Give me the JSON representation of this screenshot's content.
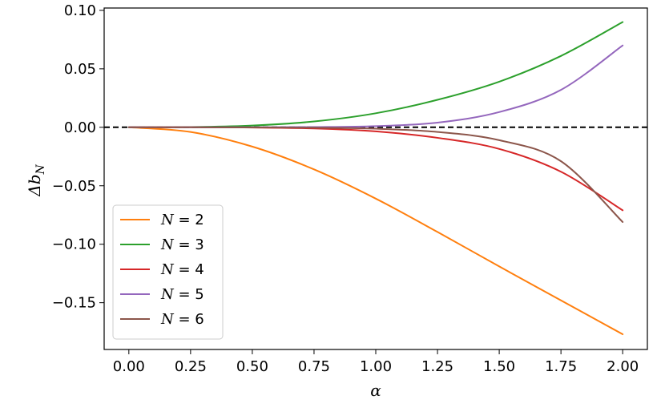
{
  "chart_data": {
    "type": "line",
    "title": "",
    "xlabel": "α",
    "ylabel": "Δb_N",
    "xlim": [
      -0.1,
      2.1
    ],
    "ylim": [
      -0.19,
      0.102
    ],
    "grid": false,
    "legend_position": "lower-left",
    "x_ticks": [
      0.0,
      0.25,
      0.5,
      0.75,
      1.0,
      1.25,
      1.5,
      1.75,
      2.0
    ],
    "x_tick_labels": [
      "0.00",
      "0.25",
      "0.50",
      "0.75",
      "1.00",
      "1.25",
      "1.50",
      "1.75",
      "2.00"
    ],
    "y_ticks": [
      0.1,
      0.05,
      0.0,
      -0.05,
      -0.1,
      -0.15
    ],
    "y_tick_labels": [
      "0.10",
      "0.05",
      "0.00",
      "−0.05",
      "−0.10",
      "−0.15"
    ],
    "reference_line": {
      "y": 0.0,
      "style": "dashed",
      "color": "#000000"
    },
    "x": [
      0.0,
      0.25,
      0.5,
      0.75,
      1.0,
      1.25,
      1.5,
      1.75,
      2.0
    ],
    "series": [
      {
        "name": "N = 2",
        "label_var": "N",
        "label_val": "2",
        "color": "#ff7f0e",
        "values": [
          0.0,
          -0.004,
          -0.0165,
          -0.036,
          -0.061,
          -0.0895,
          -0.119,
          -0.148,
          -0.177
        ]
      },
      {
        "name": "N = 3",
        "label_var": "N",
        "label_val": "3",
        "color": "#2ca02c",
        "values": [
          0.0,
          0.0002,
          0.0015,
          0.005,
          0.012,
          0.0235,
          0.039,
          0.061,
          0.09
        ]
      },
      {
        "name": "N = 4",
        "label_var": "N",
        "label_val": "4",
        "color": "#d62728",
        "values": [
          0.0,
          0.0,
          -0.0002,
          -0.001,
          -0.0035,
          -0.009,
          -0.0185,
          -0.038,
          -0.071
        ]
      },
      {
        "name": "N = 5",
        "label_var": "N",
        "label_val": "5",
        "color": "#9467bd",
        "values": [
          0.0,
          0.0,
          0.0,
          0.0002,
          0.001,
          0.004,
          0.013,
          0.032,
          0.07
        ]
      },
      {
        "name": "N = 6",
        "label_var": "N",
        "label_val": "6",
        "color": "#8c564b",
        "values": [
          0.0,
          0.0,
          -0.0001,
          -0.0003,
          -0.0012,
          -0.004,
          -0.011,
          -0.029,
          -0.081
        ]
      }
    ]
  }
}
